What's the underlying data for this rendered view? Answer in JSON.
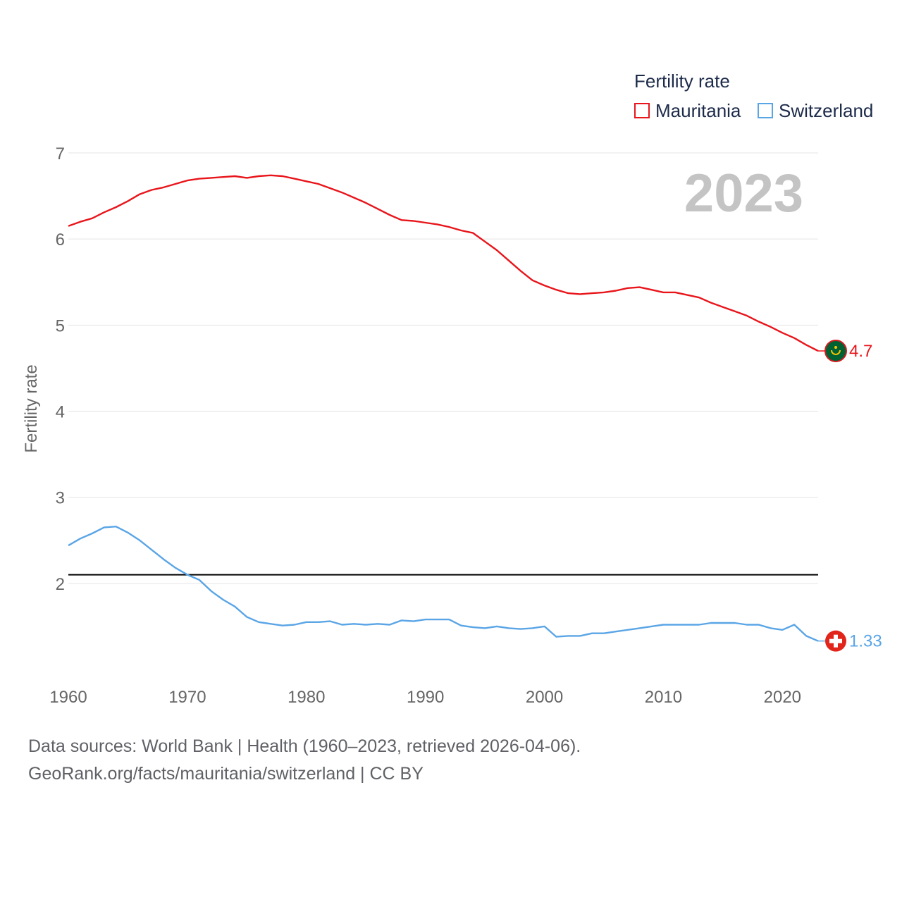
{
  "legend": {
    "title": "Fertility rate",
    "items": [
      {
        "name": "Mauritania",
        "color": "#e8151b"
      },
      {
        "name": "Switzerland",
        "color": "#5aa5e6"
      }
    ]
  },
  "footer": {
    "line1": "Data sources: World Bank | Health (1960–2023, retrieved 2026-04-06).",
    "line2": "GeoRank.org/facts/mauritania/switzerland | CC BY"
  },
  "chart_data": {
    "type": "line",
    "title": "Fertility rate",
    "ylabel": "Fertility rate",
    "xlabel": "",
    "year_label": "2023",
    "xlim": [
      1960,
      2023
    ],
    "ylim": [
      1.0,
      7.0
    ],
    "x_ticks": [
      1960,
      1970,
      1980,
      1990,
      2000,
      2010,
      2020
    ],
    "y_ticks": [
      2,
      3,
      4,
      5,
      6,
      7
    ],
    "reference_line": {
      "value": 2.1,
      "color": "#000000"
    },
    "grid": true,
    "x": [
      1960,
      1961,
      1962,
      1963,
      1964,
      1965,
      1966,
      1967,
      1968,
      1969,
      1970,
      1971,
      1972,
      1973,
      1974,
      1975,
      1976,
      1977,
      1978,
      1979,
      1980,
      1981,
      1982,
      1983,
      1984,
      1985,
      1986,
      1987,
      1988,
      1989,
      1990,
      1991,
      1992,
      1993,
      1994,
      1995,
      1996,
      1997,
      1998,
      1999,
      2000,
      2001,
      2002,
      2003,
      2004,
      2005,
      2006,
      2007,
      2008,
      2009,
      2010,
      2011,
      2012,
      2013,
      2014,
      2015,
      2016,
      2017,
      2018,
      2019,
      2020,
      2021,
      2022,
      2023
    ],
    "series": [
      {
        "name": "Mauritania",
        "color": "#e8151b",
        "end_label": "4.7",
        "end_icon": "mauritania-flag-icon",
        "values": [
          6.15,
          6.2,
          6.24,
          6.31,
          6.37,
          6.44,
          6.52,
          6.57,
          6.6,
          6.64,
          6.68,
          6.7,
          6.71,
          6.72,
          6.73,
          6.71,
          6.73,
          6.74,
          6.73,
          6.7,
          6.67,
          6.64,
          6.59,
          6.54,
          6.48,
          6.42,
          6.35,
          6.28,
          6.22,
          6.21,
          6.19,
          6.17,
          6.14,
          6.1,
          6.07,
          5.97,
          5.87,
          5.75,
          5.63,
          5.52,
          5.46,
          5.41,
          5.37,
          5.36,
          5.37,
          5.38,
          5.4,
          5.43,
          5.44,
          5.41,
          5.38,
          5.38,
          5.35,
          5.32,
          5.26,
          5.21,
          5.16,
          5.11,
          5.04,
          4.98,
          4.91,
          4.85,
          4.77,
          4.7
        ]
      },
      {
        "name": "Switzerland",
        "color": "#5aa5e6",
        "end_label": "1.33",
        "end_icon": "switzerland-flag-icon",
        "values": [
          2.44,
          2.52,
          2.58,
          2.65,
          2.66,
          2.59,
          2.5,
          2.39,
          2.28,
          2.18,
          2.1,
          2.04,
          1.91,
          1.81,
          1.73,
          1.61,
          1.55,
          1.53,
          1.51,
          1.52,
          1.55,
          1.55,
          1.56,
          1.52,
          1.53,
          1.52,
          1.53,
          1.52,
          1.57,
          1.56,
          1.58,
          1.58,
          1.58,
          1.51,
          1.49,
          1.48,
          1.5,
          1.48,
          1.47,
          1.48,
          1.5,
          1.38,
          1.39,
          1.39,
          1.42,
          1.42,
          1.44,
          1.46,
          1.48,
          1.5,
          1.52,
          1.52,
          1.52,
          1.52,
          1.54,
          1.54,
          1.54,
          1.52,
          1.52,
          1.48,
          1.46,
          1.52,
          1.39,
          1.33
        ]
      }
    ]
  }
}
